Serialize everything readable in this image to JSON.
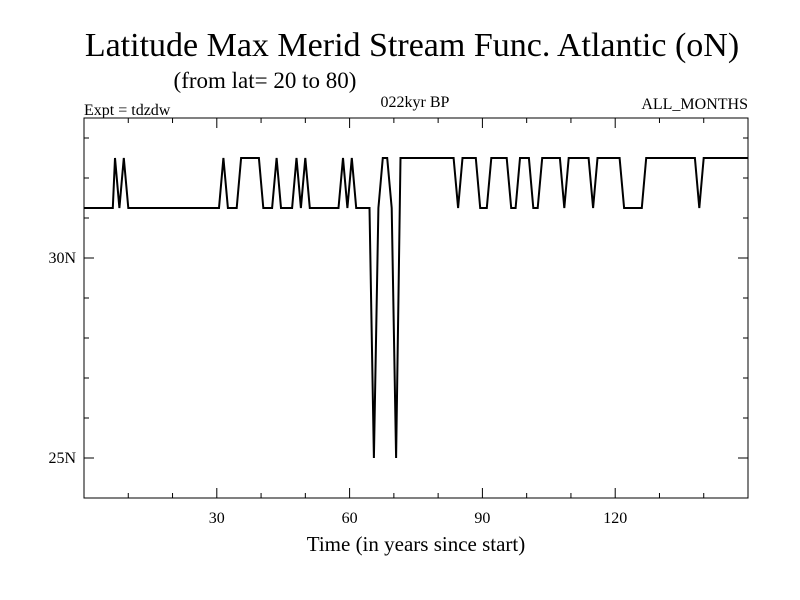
{
  "chart_data": {
    "type": "line",
    "title": "Latitude Max Merid Stream Func. Atlantic (oN)",
    "subtitle": "(from lat= 20 to 80)",
    "annotations": {
      "left": "Expt = tdzdw",
      "center": "022kyr BP",
      "right": "ALL_MONTHS"
    },
    "xlabel": "Time (in years since start)",
    "ylabel": "",
    "xlim": [
      0,
      150
    ],
    "ylim": [
      24,
      33.5
    ],
    "x_ticks": [
      {
        "value": 30,
        "label": "30"
      },
      {
        "value": 60,
        "label": "60"
      },
      {
        "value": 90,
        "label": "90"
      },
      {
        "value": 120,
        "label": "120"
      }
    ],
    "y_ticks": [
      {
        "value": 25,
        "label": "25N"
      },
      {
        "value": 30,
        "label": "30N"
      }
    ],
    "grid": false,
    "series": [
      {
        "name": "",
        "color": "#000000",
        "points": [
          [
            0,
            31.25
          ],
          [
            6.5,
            31.25
          ],
          [
            7,
            32.5
          ],
          [
            8,
            31.25
          ],
          [
            9,
            32.5
          ],
          [
            10,
            31.25
          ],
          [
            30.5,
            31.25
          ],
          [
            31.5,
            32.5
          ],
          [
            32.5,
            31.25
          ],
          [
            34.5,
            31.25
          ],
          [
            35.5,
            32.5
          ],
          [
            39.5,
            32.5
          ],
          [
            40.5,
            31.25
          ],
          [
            42.5,
            31.25
          ],
          [
            43.5,
            32.5
          ],
          [
            44.5,
            31.25
          ],
          [
            47,
            31.25
          ],
          [
            48,
            32.5
          ],
          [
            49,
            31.25
          ],
          [
            50,
            32.5
          ],
          [
            51,
            31.25
          ],
          [
            57.5,
            31.25
          ],
          [
            58.5,
            32.5
          ],
          [
            59.5,
            31.25
          ],
          [
            60.5,
            32.5
          ],
          [
            61.5,
            31.25
          ],
          [
            64.5,
            31.25
          ],
          [
            65.5,
            25
          ],
          [
            66.5,
            31.25
          ],
          [
            67.5,
            32.5
          ],
          [
            68.5,
            32.5
          ],
          [
            69.5,
            31.25
          ],
          [
            70.5,
            25
          ],
          [
            71.5,
            32.5
          ],
          [
            83.5,
            32.5
          ],
          [
            84.5,
            31.25
          ],
          [
            85.5,
            32.5
          ],
          [
            88.5,
            32.5
          ],
          [
            89.5,
            31.25
          ],
          [
            91,
            31.25
          ],
          [
            92,
            32.5
          ],
          [
            95.5,
            32.5
          ],
          [
            96.5,
            31.25
          ],
          [
            97.5,
            31.25
          ],
          [
            98.5,
            32.5
          ],
          [
            100.5,
            32.5
          ],
          [
            101.5,
            31.25
          ],
          [
            102.5,
            31.25
          ],
          [
            103.5,
            32.5
          ],
          [
            107.5,
            32.5
          ],
          [
            108.5,
            31.25
          ],
          [
            109.5,
            32.5
          ],
          [
            114,
            32.5
          ],
          [
            115,
            31.25
          ],
          [
            116,
            32.5
          ],
          [
            121,
            32.5
          ],
          [
            122,
            31.25
          ],
          [
            126,
            31.25
          ],
          [
            127,
            32.5
          ],
          [
            138,
            32.5
          ],
          [
            139,
            31.25
          ],
          [
            140,
            32.5
          ],
          [
            150,
            32.5
          ]
        ]
      }
    ]
  }
}
